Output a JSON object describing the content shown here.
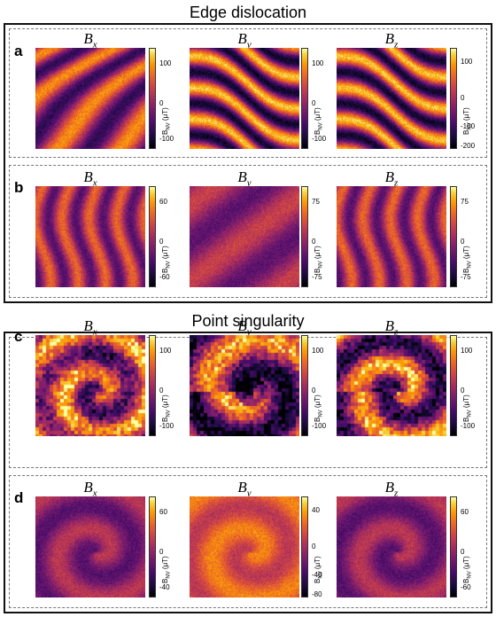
{
  "sections": [
    {
      "title": "Edge dislocation",
      "panels": [
        {
          "label": "a",
          "maps": [
            {
              "component": "B",
              "sub": "x",
              "ticks": [
                "100",
                "0",
                "-100"
              ],
              "scheme": "stripes-diag",
              "seed": 3
            },
            {
              "component": "B",
              "sub": "y",
              "ticks": [
                "100",
                "0",
                "-100"
              ],
              "scheme": "stripes-wave",
              "seed": 7
            },
            {
              "component": "B",
              "sub": "z",
              "ticks": [
                "100",
                "0",
                "-100",
                "-200"
              ],
              "scheme": "stripes-wave",
              "seed": 11
            }
          ]
        },
        {
          "label": "b",
          "maps": [
            {
              "component": "B",
              "sub": "x",
              "ticks": [
                "60",
                "0",
                "-60"
              ],
              "scheme": "stripes-vert",
              "seed": 5
            },
            {
              "component": "B",
              "sub": "y",
              "ticks": [
                "75",
                "0",
                "-75"
              ],
              "scheme": "soft-diag",
              "seed": 9
            },
            {
              "component": "B",
              "sub": "z",
              "ticks": [
                "75",
                "0",
                "-75"
              ],
              "scheme": "stripes-vert",
              "seed": 13
            }
          ]
        }
      ]
    },
    {
      "title": "Point singularity",
      "panels": [
        {
          "label": "c",
          "maps": [
            {
              "component": "B",
              "sub": "x",
              "ticks": [
                "100",
                "0",
                "-100"
              ],
              "scheme": "ring-bright",
              "seed": 17
            },
            {
              "component": "B",
              "sub": "y",
              "ticks": [
                "100",
                "0",
                "-100"
              ],
              "scheme": "ring-dark",
              "seed": 19
            },
            {
              "component": "B",
              "sub": "z",
              "ticks": [
                "100",
                "0",
                "-100"
              ],
              "scheme": "ring-swirl",
              "seed": 23
            }
          ]
        },
        {
          "label": "d",
          "maps": [
            {
              "component": "B",
              "sub": "x",
              "ticks": [
                "60",
                "0",
                "-40"
              ],
              "scheme": "ring-faint",
              "seed": 29
            },
            {
              "component": "B",
              "sub": "y",
              "ticks": [
                "40",
                "0",
                "-40",
                "-80"
              ],
              "scheme": "ring-orange",
              "seed": 31
            },
            {
              "component": "B",
              "sub": "z",
              "ticks": [
                "60",
                "0",
                "-60"
              ],
              "scheme": "ring-faint",
              "seed": 37
            }
          ]
        }
      ]
    }
  ],
  "colorbar_unit": {
    "symbol": "B",
    "sub": "NV",
    "unit": "(μT)"
  },
  "colormap": "inferno"
}
